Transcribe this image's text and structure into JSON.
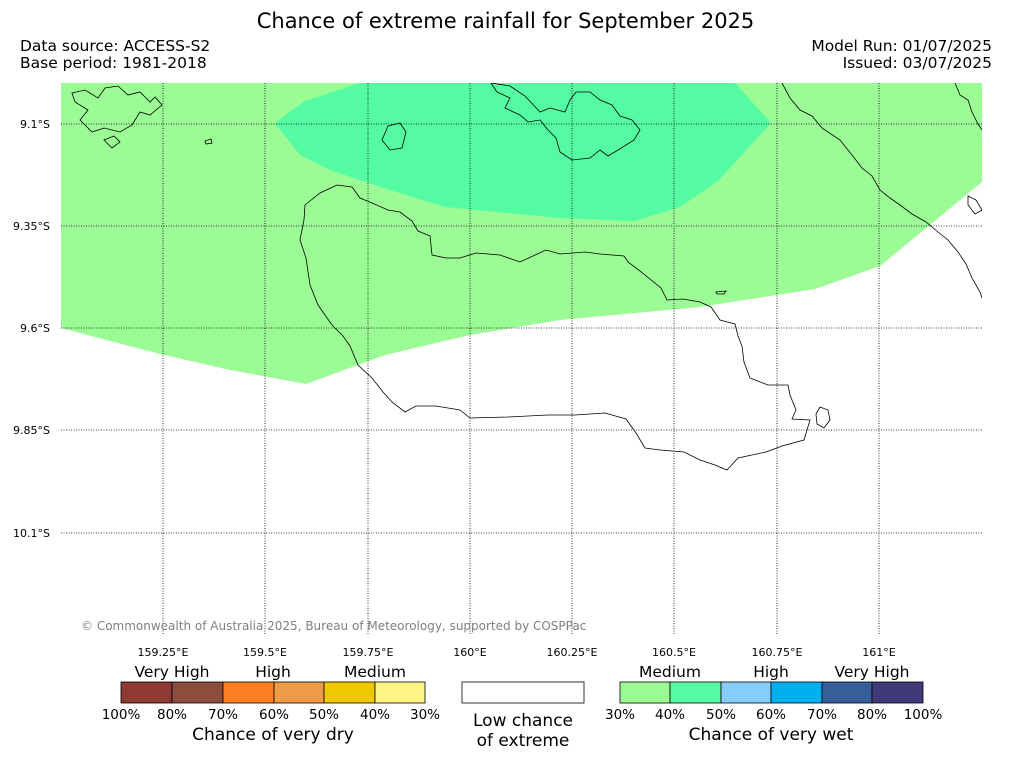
{
  "title": "Chance of extreme rainfall for September 2025",
  "data_source": "Data source: ACCESS-S2",
  "base_period": "Base period: 1981-2018",
  "model_run": "Model Run: 01/07/2025",
  "issued": "Issued: 03/07/2025",
  "map": {
    "latitude_labels": [
      "9.1°S",
      "9.35°S",
      "9.6°S",
      "9.85°S",
      "10.1°S"
    ],
    "longitude_labels": [
      "159.25°E",
      "159.5°E",
      "159.75°E",
      "160°E",
      "160.25°E",
      "160.5°E",
      "160.75°E",
      "161°E"
    ],
    "copyright": "© Commonwealth of Australia 2025, Bureau of Meteorology, supported by COSPPac",
    "zones": [
      {
        "category": "Chance of very wet",
        "band": "30% - 40%",
        "color": "#9bfb95"
      },
      {
        "category": "Chance of very wet",
        "band": "40% - 50%",
        "color": "#55fba2"
      }
    ]
  },
  "legend": {
    "dry": {
      "levels": [
        "Very High",
        "High",
        "Medium"
      ],
      "colors": [
        "#8c3a33",
        "#8b4e3d",
        "#ff7f24",
        "#ee9b48",
        "#f0c800",
        "#fff485"
      ],
      "ticks": [
        "100%",
        "80%",
        "70%",
        "60%",
        "50%",
        "40%",
        "30%"
      ],
      "caption": "Chance of very dry"
    },
    "neutral": {
      "color": "#ffffff",
      "caption_line1": "Low chance",
      "caption_line2": "of extreme"
    },
    "wet": {
      "levels": [
        "Medium",
        "High",
        "Very High"
      ],
      "colors": [
        "#9bfb95",
        "#55fba2",
        "#87cdfa",
        "#00b0ef",
        "#365f9a",
        "#403a78"
      ],
      "ticks": [
        "30%",
        "40%",
        "50%",
        "60%",
        "70%",
        "80%",
        "100%"
      ],
      "caption": "Chance of very wet"
    }
  }
}
